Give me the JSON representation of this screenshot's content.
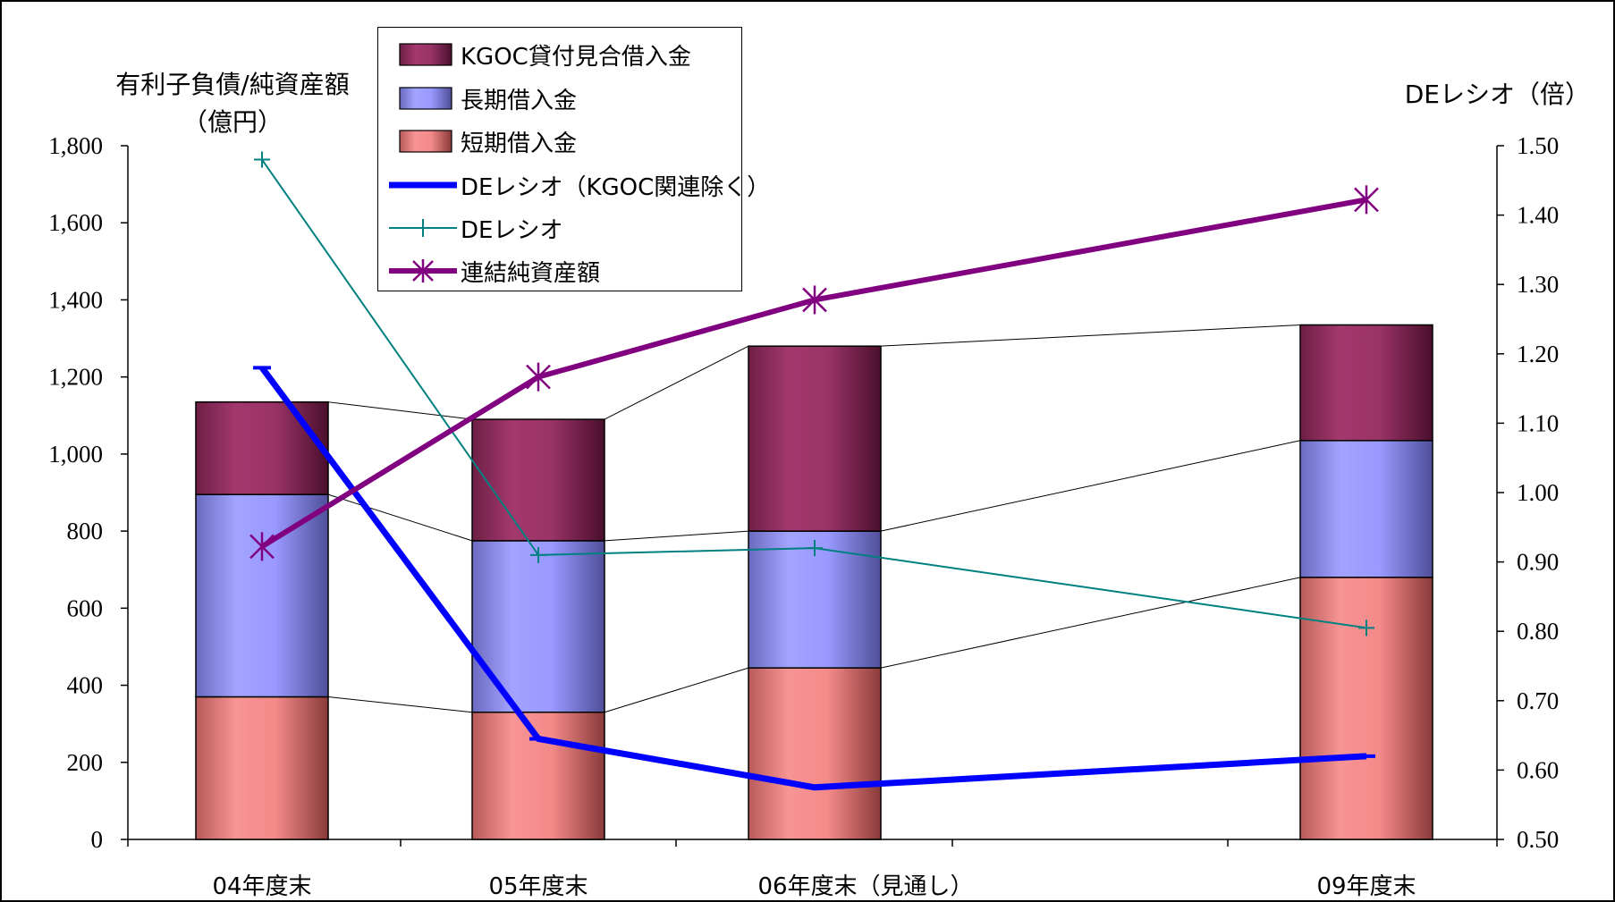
{
  "chart_data": {
    "type": "bar",
    "stacked": true,
    "categories": [
      "04年度末",
      "05年度末",
      "06年度末（見通し）",
      "09年度末"
    ],
    "series": [
      {
        "name": "短期借入金",
        "kind": "bar",
        "axis": "left",
        "color": "#f48a8a",
        "values": [
          370,
          330,
          445,
          680
        ]
      },
      {
        "name": "長期借入金",
        "kind": "bar",
        "axis": "left",
        "color": "#9999ff",
        "values": [
          525,
          445,
          355,
          355
        ]
      },
      {
        "name": "KGOC貸付見合借入金",
        "kind": "bar",
        "axis": "left",
        "color": "#993366",
        "values": [
          240,
          315,
          480,
          300
        ]
      },
      {
        "name": "DEレシオ（KGOC関連除く）",
        "kind": "line",
        "axis": "right",
        "color": "#0000ff",
        "values": [
          1.18,
          0.645,
          0.575,
          0.62
        ]
      },
      {
        "name": "DEレシオ",
        "kind": "line",
        "axis": "right",
        "color": "#008080",
        "marker": "plus",
        "values": [
          1.48,
          0.91,
          0.92,
          0.805
        ]
      },
      {
        "name": "連結純資産額",
        "kind": "line",
        "axis": "left",
        "color": "#800080",
        "marker": "asterisk",
        "values": [
          760,
          1200,
          1400,
          1660
        ]
      }
    ],
    "ylabel_left": [
      "有利子負債/純資産額",
      "（億円）"
    ],
    "ylabel_right": "DEレシオ（倍）",
    "ylim_left": [
      0,
      1800
    ],
    "yticks_left": [
      "0",
      "200",
      "400",
      "600",
      "800",
      "1,000",
      "1,200",
      "1,400",
      "1,600",
      "1,800"
    ],
    "ylim_right": [
      0.5,
      1.5
    ],
    "yticks_right": [
      "0.50",
      "0.60",
      "0.70",
      "0.80",
      "0.90",
      "1.00",
      "1.10",
      "1.20",
      "1.30",
      "1.40",
      "1.50"
    ],
    "grid": false,
    "legend_position": "top-left",
    "legend_order": [
      "KGOC貸付見合借入金",
      "長期借入金",
      "短期借入金",
      "DEレシオ（KGOC関連除く）",
      "DEレシオ",
      "連結純資産額"
    ]
  }
}
